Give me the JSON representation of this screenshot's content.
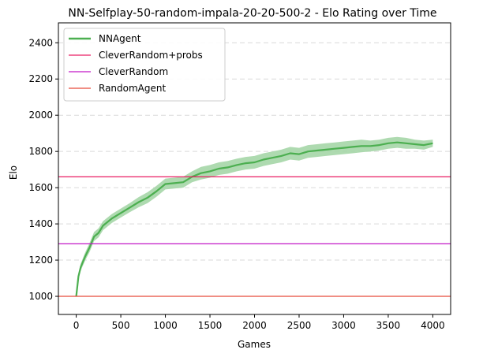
{
  "chart_data": {
    "type": "line",
    "title": "NN-Selfplay-50-random-impala-20-20-500-2 - Elo Rating over Time",
    "xlabel": "Games",
    "ylabel": "Elo",
    "xlim": [
      -200,
      4200
    ],
    "ylim": [
      900,
      2510
    ],
    "xticks": [
      0,
      500,
      1000,
      1500,
      2000,
      2500,
      3000,
      3500,
      4000
    ],
    "yticks": [
      1000,
      1200,
      1400,
      1600,
      1800,
      2000,
      2200,
      2400
    ],
    "grid": "y-dashed",
    "legend_position": "top-left",
    "series": [
      {
        "name": "NNAgent",
        "kind": "line-with-band",
        "color": "#4caf50",
        "band_color": "#a5d6a7",
        "x": [
          0,
          25,
          50,
          100,
          150,
          200,
          250,
          300,
          400,
          500,
          600,
          700,
          800,
          900,
          1000,
          1100,
          1200,
          1300,
          1400,
          1500,
          1600,
          1700,
          1800,
          1900,
          2000,
          2100,
          2200,
          2300,
          2400,
          2500,
          2600,
          2700,
          2800,
          2900,
          3000,
          3100,
          3200,
          3300,
          3400,
          3500,
          3600,
          3700,
          3800,
          3900,
          4000
        ],
        "y": [
          1000,
          1110,
          1160,
          1220,
          1270,
          1330,
          1350,
          1390,
          1430,
          1460,
          1490,
          1520,
          1545,
          1580,
          1620,
          1625,
          1630,
          1660,
          1680,
          1690,
          1705,
          1712,
          1725,
          1735,
          1740,
          1755,
          1765,
          1775,
          1790,
          1785,
          1800,
          1805,
          1810,
          1815,
          1820,
          1825,
          1830,
          1830,
          1835,
          1845,
          1850,
          1845,
          1840,
          1835,
          1845
        ],
        "band": [
          0,
          15,
          20,
          22,
          25,
          25,
          25,
          25,
          25,
          25,
          25,
          28,
          30,
          30,
          30,
          30,
          30,
          30,
          35,
          35,
          35,
          35,
          35,
          35,
          35,
          35,
          35,
          35,
          35,
          35,
          35,
          35,
          35,
          35,
          35,
          35,
          35,
          30,
          30,
          30,
          30,
          30,
          25,
          25,
          20
        ]
      },
      {
        "name": "CleverRandom+probs",
        "kind": "hline",
        "color": "#e91e63",
        "value": 1660
      },
      {
        "name": "CleverRandom",
        "kind": "hline",
        "color": "#c218c7",
        "value": 1290
      },
      {
        "name": "RandomAgent",
        "kind": "hline",
        "color": "#e64a3a",
        "value": 1000
      }
    ]
  }
}
